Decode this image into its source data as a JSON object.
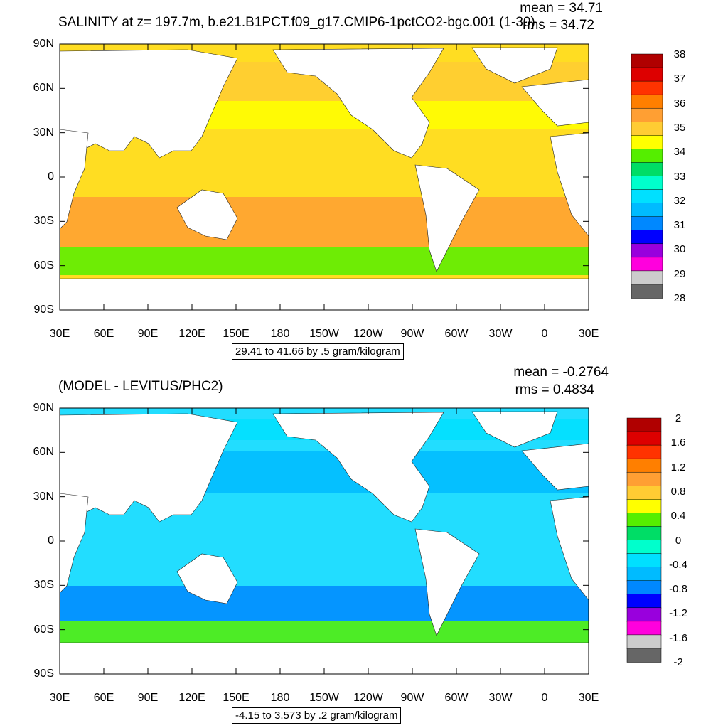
{
  "chart_data": [
    {
      "type": "heatmap",
      "title": "SALINITY at z= 197.7m, b.e21.B1PCT.f09_g17.CMIP6-1pctCO2-bgc.001 (1-30)",
      "stats": {
        "mean": "mean = 34.71",
        "rms": "rms = 34.72"
      },
      "x_ticks": [
        "30E",
        "60E",
        "90E",
        "120E",
        "150E",
        "180",
        "150W",
        "120W",
        "90W",
        "60W",
        "30W",
        "0",
        "30E"
      ],
      "y_ticks": [
        "90N",
        "60N",
        "30N",
        "0",
        "30S",
        "60S",
        "90S"
      ],
      "colorbar": {
        "labels": [
          "38",
          "37",
          "36",
          "35",
          "34",
          "33",
          "32",
          "31",
          "30",
          "29",
          "28"
        ],
        "colors": [
          "#b00000",
          "#dd0000",
          "#ff3300",
          "#ff7f00",
          "#ff9f33",
          "#ffcc33",
          "#ffff00",
          "#55ee00",
          "#00dd66",
          "#00ffcc",
          "#00e0ff",
          "#00bbff",
          "#0088ff",
          "#0000ff",
          "#9900dd",
          "#ff00dd",
          "#cccccc",
          "#666666"
        ]
      },
      "range_label": "29.41 to 41.66 by .5 gram/kilogram",
      "ocean_fill": "#ffdd22"
    },
    {
      "type": "heatmap",
      "title": "(MODEL - LEVITUS/PHC2)",
      "stats": {
        "mean": "mean = -0.2764",
        "rms": "rms = 0.4834"
      },
      "x_ticks": [
        "30E",
        "60E",
        "90E",
        "120E",
        "150E",
        "180",
        "150W",
        "120W",
        "90W",
        "60W",
        "30W",
        "0",
        "30E"
      ],
      "y_ticks": [
        "90N",
        "60N",
        "30N",
        "0",
        "30S",
        "60S",
        "90S"
      ],
      "colorbar": {
        "labels": [
          "2",
          "1.6",
          "1.2",
          "0.8",
          "0.4",
          "0",
          "-0.4",
          "-0.8",
          "-1.2",
          "-1.6",
          "-2"
        ],
        "colors": [
          "#b00000",
          "#dd0000",
          "#ff3300",
          "#ff7f00",
          "#ff9f33",
          "#ffcc33",
          "#ffff00",
          "#55ee00",
          "#00dd66",
          "#00ffcc",
          "#00e0ff",
          "#00bbff",
          "#0088ff",
          "#0000ff",
          "#9900dd",
          "#ff00dd",
          "#cccccc",
          "#666666"
        ]
      },
      "range_label": "-4.15 to 3.573 by .2 gram/kilogram",
      "ocean_fill": "#22ddff"
    }
  ]
}
